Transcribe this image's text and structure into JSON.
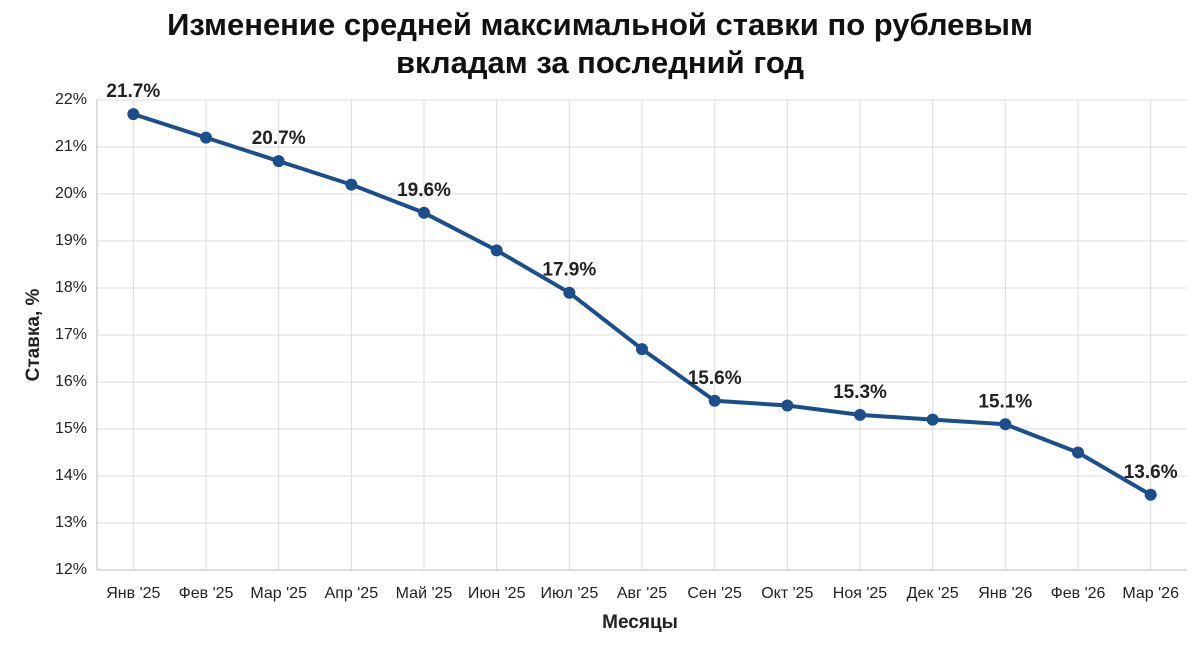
{
  "chart_data": {
    "type": "line",
    "title": "Изменение средней максимальной ставки по рублевым вкладам за последний год",
    "x_label": "Месяцы",
    "y_label": "Ставка, %",
    "categories": [
      "Янв '25",
      "Фев '25",
      "Мар '25",
      "Апр '25",
      "Май '25",
      "Июн '25",
      "Июл '25",
      "Авг '25",
      "Сен '25",
      "Окт '25",
      "Ноя '25",
      "Дек '25",
      "Янв '26",
      "Фев '26",
      "Мар '26"
    ],
    "series": [
      {
        "color": "#1d4e8c",
        "values": [
          21.7,
          21.2,
          20.7,
          20.2,
          19.6,
          18.8,
          17.9,
          16.7,
          15.6,
          15.5,
          15.3,
          15.2,
          15.1,
          14.5,
          13.6
        ],
        "value_labels": [
          "21.7%",
          null,
          "20.7%",
          null,
          "19.6%",
          null,
          "17.9%",
          null,
          "15.6%",
          null,
          "15.3%",
          null,
          "15.1%",
          null,
          "13.6%"
        ]
      }
    ],
    "ylim": [
      12,
      22
    ],
    "yticks": [
      {
        "value": 12,
        "label": "12%"
      },
      {
        "value": 13,
        "label": "13%"
      },
      {
        "value": 14,
        "label": "14%"
      },
      {
        "value": 15,
        "label": "15%"
      },
      {
        "value": 16,
        "label": "16%"
      },
      {
        "value": 17,
        "label": "17%"
      },
      {
        "value": 18,
        "label": "18%"
      },
      {
        "value": 19,
        "label": "19%"
      },
      {
        "value": 20,
        "label": "20%"
      },
      {
        "value": 21,
        "label": "21%"
      },
      {
        "value": 22,
        "label": "22%"
      }
    ],
    "grid": true
  }
}
